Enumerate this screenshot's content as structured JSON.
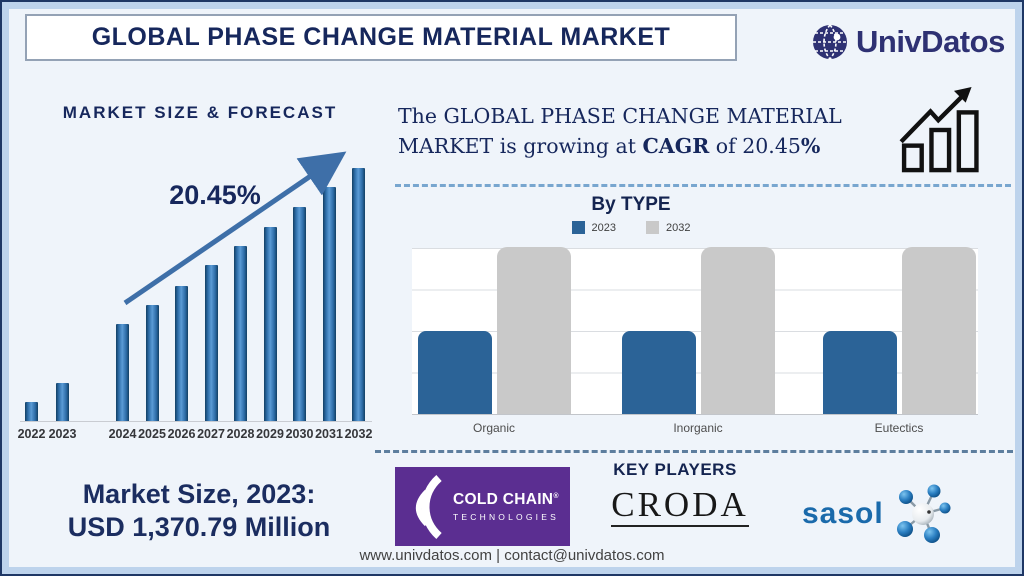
{
  "colors": {
    "navy": "#16275c",
    "forecast_bar_blue": "#2e6da8",
    "type_2023_blue": "#2b6397",
    "type_2032_gray": "#c9c9c9",
    "cold_chain_purple": "#5b2e91",
    "sasol_blue": "#1a6aab",
    "dashed_light": "#78a6cf",
    "dashed_dark": "#5d7e9e"
  },
  "header": {
    "title": "GLOBAL PHASE CHANGE MATERIAL MARKET",
    "brand": "UnivDatos"
  },
  "cagr_note": {
    "line1": "The GLOBAL PHASE CHANGE MATERIAL",
    "line2_parts": [
      "MARKET is growing at ",
      "CAGR",
      " of 20.45",
      "%"
    ]
  },
  "chart_data": [
    {
      "type": "bar",
      "title": "MARKET SIZE & FORECAST",
      "categories": [
        "2022",
        "2023",
        "2024",
        "2025",
        "2026",
        "2027",
        "2028",
        "2029",
        "2030",
        "2031",
        "2032"
      ],
      "values": [
        7.5,
        15,
        38.3,
        45.8,
        53.4,
        61.7,
        69.2,
        76.7,
        84.6,
        92.5,
        100
      ],
      "value_note": "relative bar heights (no y-axis shown); 2023 anchor = USD 1,370.79 Million",
      "annotation": "20.45%",
      "trend_arrow": true,
      "xlabel": "",
      "ylabel": "",
      "ylim": [
        0,
        100
      ],
      "legend_position": "none",
      "grid": false
    },
    {
      "type": "bar",
      "title": "By TYPE",
      "categories": [
        "Organic",
        "Inorganic",
        "Eutectics"
      ],
      "series": [
        {
          "name": "2023",
          "color": "#2b6397",
          "values": [
            2,
            2,
            2
          ]
        },
        {
          "name": "2032",
          "color": "#c9c9c9",
          "values": [
            4,
            4,
            4
          ]
        }
      ],
      "value_note": "heights in gridline units; 2032 bars reach top gridline, 2023 bars reach half",
      "xlabel": "",
      "ylabel": "",
      "ylim": [
        0,
        4
      ],
      "legend_position": "top",
      "grid": true
    }
  ],
  "market_size": {
    "line1": "Market Size, 2023:",
    "line2": "USD 1,370.79 Million"
  },
  "key_players": {
    "heading": "KEY PLAYERS",
    "companies": [
      "Cold Chain Technologies",
      "Croda",
      "Sasol"
    ]
  },
  "cold_chain": {
    "name_top": "COLD CHAIN",
    "reg": "®",
    "name_bottom": "TECHNOLOGIES"
  },
  "croda": {
    "text": "CRODA"
  },
  "sasol": {
    "text": "sasol"
  },
  "footer": {
    "text": "www.univdatos.com | contact@univdatos.com"
  }
}
